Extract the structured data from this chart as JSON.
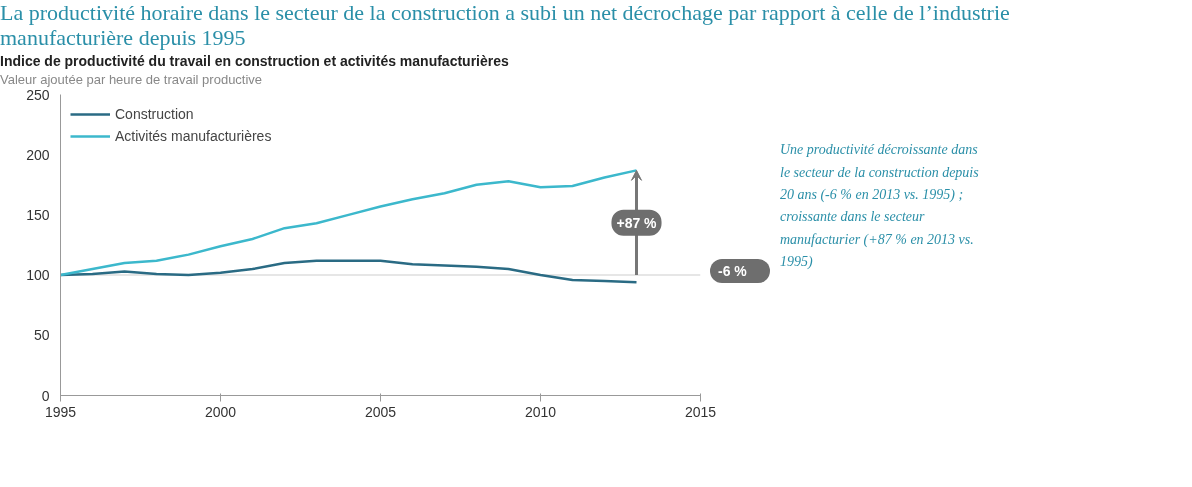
{
  "chart_data": {
    "type": "line",
    "title": "La productivité horaire dans le secteur de la construction a subi un net décrochage par rapport à celle de l’industrie manufacturière depuis 1995",
    "subtitle": "Indice de productivité du travail en construction et activités manufacturières",
    "ylabel": "Valeur ajoutée par heure de travail productive",
    "x": [
      1995,
      1996,
      1997,
      1998,
      1999,
      2000,
      2001,
      2002,
      2003,
      2004,
      2005,
      2006,
      2007,
      2008,
      2009,
      2010,
      2011,
      2012,
      2013
    ],
    "series": [
      {
        "name": "Construction",
        "color": "#2a6b84",
        "values": [
          100,
          101,
          103,
          101,
          100,
          102,
          105,
          110,
          112,
          112,
          112,
          109,
          108,
          107,
          105,
          100,
          96,
          95,
          94
        ]
      },
      {
        "name": "Activités manufacturières",
        "color": "#3cb8cc",
        "values": [
          100,
          105,
          110,
          112,
          117,
          124,
          130,
          139,
          143,
          150,
          157,
          163,
          168,
          175,
          178,
          173,
          174,
          181,
          187
        ]
      }
    ],
    "xlim": [
      1995,
      2015
    ],
    "xticks": [
      1995,
      2000,
      2005,
      2010,
      2015
    ],
    "ylim": [
      0,
      250
    ],
    "yticks": [
      0,
      50,
      100,
      150,
      200,
      250
    ],
    "grid": false,
    "legend": "top left",
    "marker": "none",
    "line_style": "solid",
    "ref_lines": [
      {
        "axis": "y",
        "value": 100,
        "color": "#e6e6e6"
      }
    ],
    "annotations": [
      "+87 %",
      "-6 %",
      "Une productivité décroissante dans le secteur de la construction depuis 20 ans (-6 % en 2013 vs. 1995) ; croissante dans le secteur manufacturier (+87 % en 2013 vs. 1995)"
    ]
  }
}
